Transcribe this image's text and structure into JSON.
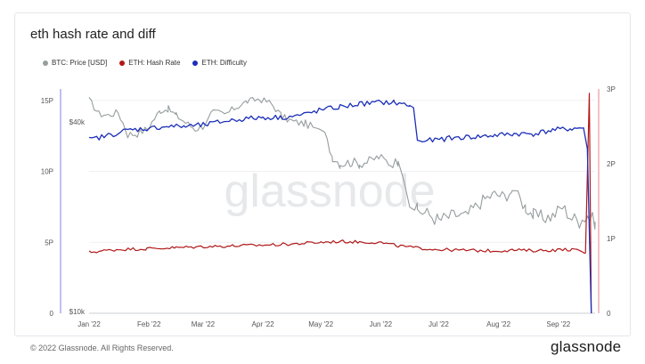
{
  "title": "eth hash rate and diff",
  "footer": "© 2022 Glassnode. All Rights Reserved.",
  "brand": "glassnode",
  "watermark": "glassnode",
  "colors": {
    "btc_price": "#969d9e",
    "hash_rate": "#b01818",
    "difficulty": "#1b2fb8",
    "grid": "#eef0f3"
  },
  "chart_data": {
    "type": "line",
    "legend": [
      "BTC: Price [USD]",
      "ETH: Hash Rate",
      "ETH: Difficulty"
    ],
    "x_ticks": [
      "Jan '22",
      "Feb '22",
      "Mar '22",
      "Apr '22",
      "May '22",
      "Jun '22",
      "Jul '22",
      "Aug '22",
      "Sep '22"
    ],
    "y_left_ticks": [
      "0",
      "5P",
      "10P",
      "15P"
    ],
    "y_left_range": [
      0,
      15.8
    ],
    "y_right_ticks": [
      "0",
      "1P",
      "2P",
      "3P"
    ],
    "y_right_range": [
      0,
      3.0
    ],
    "y_price_ticks": [
      "$10k",
      "$40k"
    ],
    "x_range_days": [
      0,
      262
    ],
    "series": [
      {
        "name": "BTC: Price [USD]",
        "axis": "price",
        "points": [
          [
            0,
            47000
          ],
          [
            5,
            42500
          ],
          [
            10,
            42000
          ],
          [
            15,
            43000
          ],
          [
            20,
            36500
          ],
          [
            25,
            36800
          ],
          [
            30,
            38000
          ],
          [
            37,
            43500
          ],
          [
            41,
            44000
          ],
          [
            45,
            42000
          ],
          [
            50,
            39800
          ],
          [
            55,
            38000
          ],
          [
            60,
            39000
          ],
          [
            63,
            43500
          ],
          [
            70,
            42000
          ],
          [
            76,
            44500
          ],
          [
            82,
            46500
          ],
          [
            88,
            47300
          ],
          [
            94,
            46000
          ],
          [
            100,
            41500
          ],
          [
            106,
            40000
          ],
          [
            112,
            39500
          ],
          [
            116,
            38500
          ],
          [
            119,
            38000
          ],
          [
            122,
            36500
          ],
          [
            126,
            31000
          ],
          [
            130,
            29500
          ],
          [
            136,
            29800
          ],
          [
            140,
            29500
          ],
          [
            145,
            30000
          ],
          [
            150,
            31000
          ],
          [
            156,
            29500
          ],
          [
            160,
            30000
          ],
          [
            163,
            26000
          ],
          [
            166,
            22500
          ],
          [
            170,
            21000
          ],
          [
            175,
            20500
          ],
          [
            181,
            19500
          ],
          [
            190,
            20300
          ],
          [
            195,
            20000
          ],
          [
            200,
            21500
          ],
          [
            205,
            22800
          ],
          [
            210,
            23600
          ],
          [
            215,
            23200
          ],
          [
            219,
            24200
          ],
          [
            222,
            23200
          ],
          [
            226,
            21500
          ],
          [
            230,
            20200
          ],
          [
            235,
            19900
          ],
          [
            240,
            20100
          ],
          [
            245,
            21500
          ],
          [
            250,
            19800
          ],
          [
            254,
            19400
          ],
          [
            258,
            20200
          ],
          [
            262,
            19300
          ]
        ]
      },
      {
        "name": "ETH: Hash Rate",
        "axis": "left",
        "points": [
          [
            0,
            4.3
          ],
          [
            15,
            4.5
          ],
          [
            30,
            4.55
          ],
          [
            45,
            4.62
          ],
          [
            60,
            4.7
          ],
          [
            75,
            4.75
          ],
          [
            90,
            4.8
          ],
          [
            105,
            4.88
          ],
          [
            120,
            5.0
          ],
          [
            130,
            5.06
          ],
          [
            140,
            5.02
          ],
          [
            150,
            5.0
          ],
          [
            160,
            4.75
          ],
          [
            170,
            4.6
          ],
          [
            180,
            4.5
          ],
          [
            190,
            4.45
          ],
          [
            200,
            4.42
          ],
          [
            210,
            4.4
          ],
          [
            220,
            4.45
          ],
          [
            230,
            4.42
          ],
          [
            240,
            4.45
          ],
          [
            250,
            4.5
          ],
          [
            257,
            4.25
          ],
          [
            259,
            15.5
          ],
          [
            260,
            0
          ]
        ]
      },
      {
        "name": "ETH: Difficulty",
        "axis": "right",
        "points": [
          [
            0,
            2.32
          ],
          [
            10,
            2.38
          ],
          [
            20,
            2.45
          ],
          [
            30,
            2.47
          ],
          [
            40,
            2.5
          ],
          [
            50,
            2.5
          ],
          [
            60,
            2.52
          ],
          [
            70,
            2.57
          ],
          [
            80,
            2.6
          ],
          [
            90,
            2.62
          ],
          [
            100,
            2.62
          ],
          [
            110,
            2.65
          ],
          [
            120,
            2.72
          ],
          [
            130,
            2.76
          ],
          [
            140,
            2.8
          ],
          [
            150,
            2.82
          ],
          [
            158,
            2.82
          ],
          [
            166,
            2.78
          ],
          [
            168,
            2.75
          ],
          [
            170,
            2.3
          ],
          [
            180,
            2.32
          ],
          [
            190,
            2.35
          ],
          [
            200,
            2.36
          ],
          [
            210,
            2.38
          ],
          [
            220,
            2.4
          ],
          [
            230,
            2.4
          ],
          [
            240,
            2.45
          ],
          [
            250,
            2.47
          ],
          [
            256,
            2.48
          ],
          [
            258,
            2.2
          ],
          [
            260,
            0
          ]
        ]
      }
    ]
  }
}
